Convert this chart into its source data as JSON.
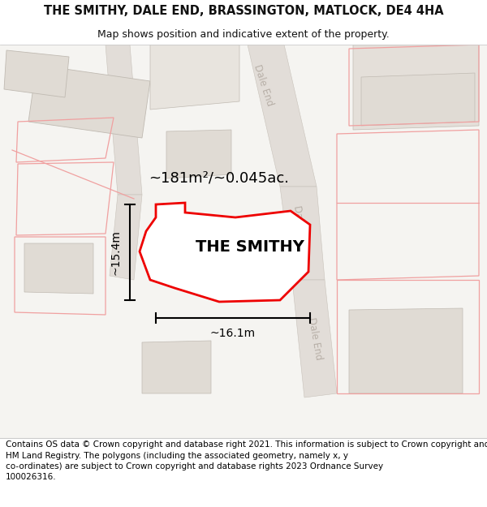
{
  "title": "THE SMITHY, DALE END, BRASSINGTON, MATLOCK, DE4 4HA",
  "subtitle": "Map shows position and indicative extent of the property.",
  "footer": "Contains OS data © Crown copyright and database right 2021. This information is subject to Crown copyright and database rights 2023 and is reproduced with the permission of\nHM Land Registry. The polygons (including the associated geometry, namely x, y\nco-ordinates) are subject to Crown copyright and database rights 2023 Ordnance Survey\n100026316.",
  "property_label": "THE SMITHY",
  "area_label": "~181m²/~0.045ac.",
  "width_label": "~16.1m",
  "height_label": "~15.4m",
  "map_bg": "#f5f4f1",
  "title_fontsize": 10.5,
  "subtitle_fontsize": 9,
  "footer_fontsize": 7.5,
  "property_fontsize": 14,
  "area_fontsize": 13,
  "measure_fontsize": 10,
  "road_label_color": "#b8b0a8",
  "road_label_fontsize": 8.5,
  "pink_edge": "#f0a0a0",
  "gray_edge": "#c0bab2",
  "bld_fill": "#e0dbd4",
  "road_fill": "#e8e4de"
}
